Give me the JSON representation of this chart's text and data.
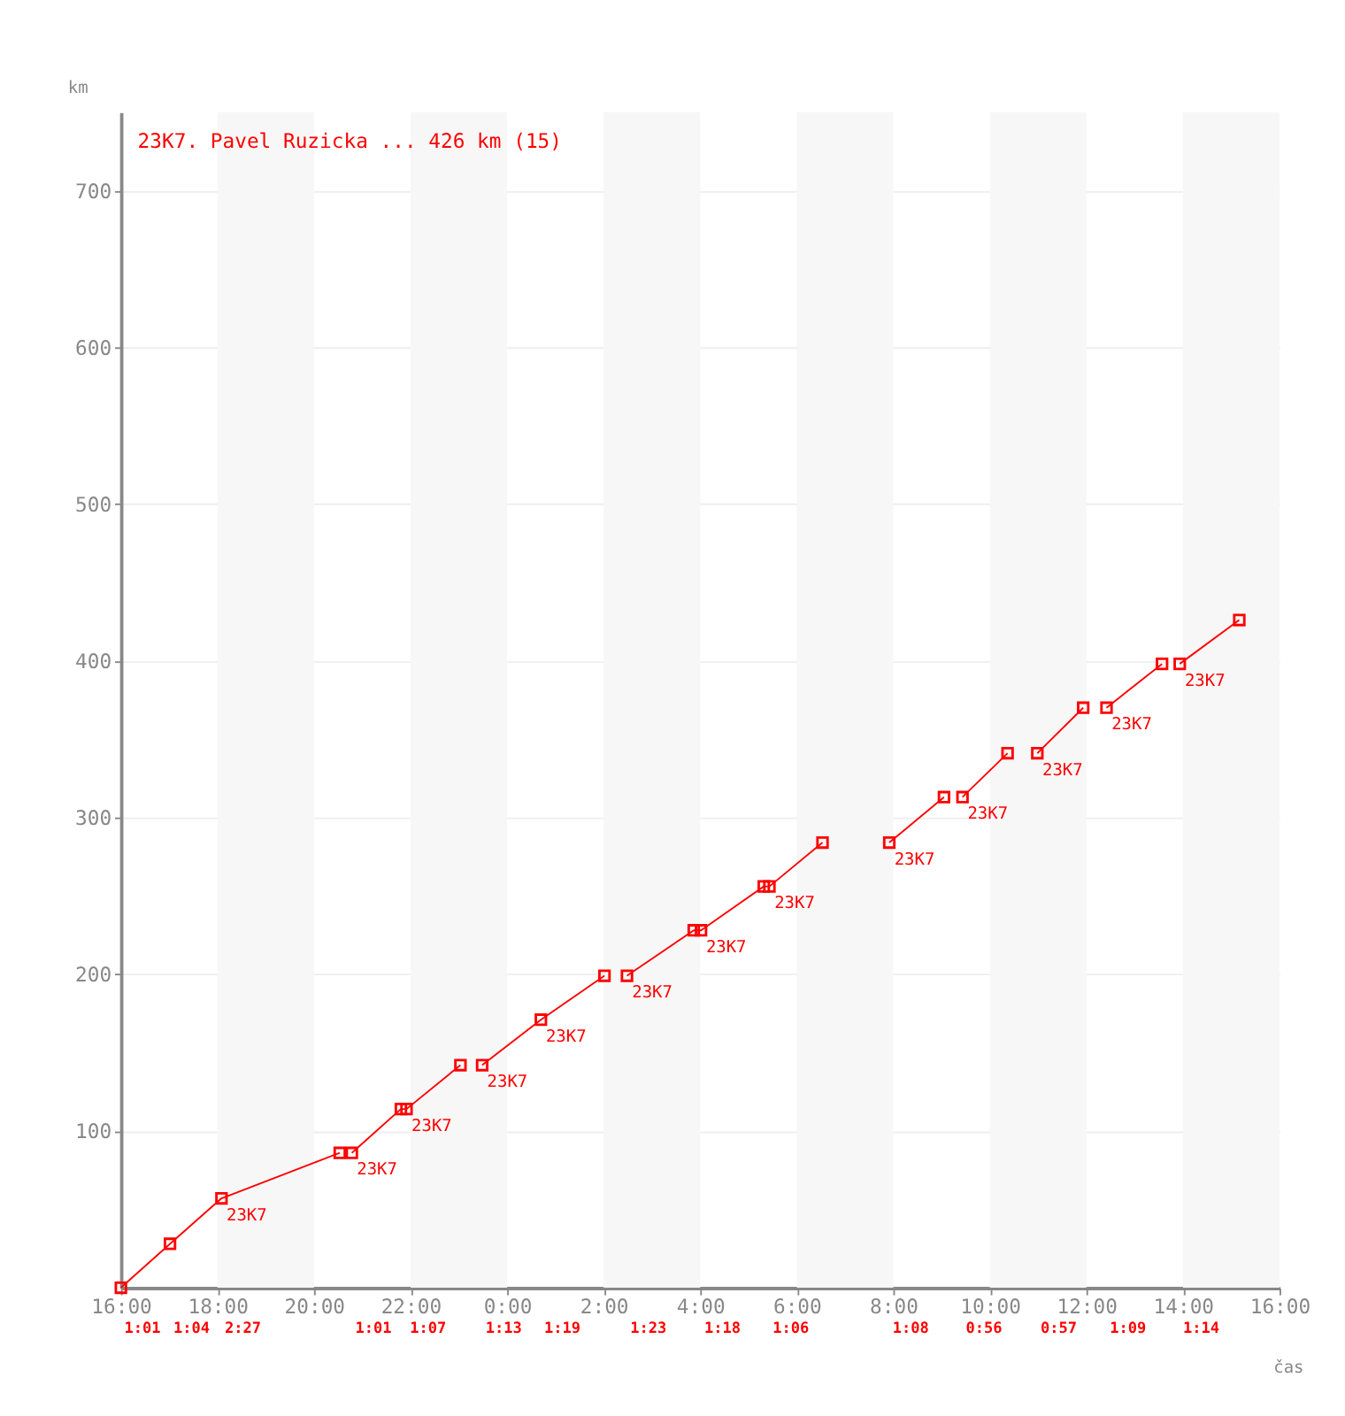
{
  "chart_data": {
    "type": "line",
    "title": "23K7. Pavel Ruzicka ... 426 km (15)",
    "xlabel": "čas",
    "ylabel": "km",
    "xlim": [
      "2000-01-01T16:00",
      "2000-01-02T16:00"
    ],
    "ylim": [
      0,
      750
    ],
    "xticks": [
      {
        "value": "2000-01-01T16:00",
        "label": "16:00"
      },
      {
        "value": "2000-01-01T18:00",
        "label": "18:00"
      },
      {
        "value": "2000-01-01T20:00",
        "label": "20:00"
      },
      {
        "value": "2000-01-01T22:00",
        "label": "22:00"
      },
      {
        "value": "2000-01-02T00:00",
        "label": "0:00"
      },
      {
        "value": "2000-01-02T02:00",
        "label": "2:00"
      },
      {
        "value": "2000-01-02T04:00",
        "label": "4:00"
      },
      {
        "value": "2000-01-02T06:00",
        "label": "6:00"
      },
      {
        "value": "2000-01-02T08:00",
        "label": "8:00"
      },
      {
        "value": "2000-01-02T10:00",
        "label": "10:00"
      },
      {
        "value": "2000-01-02T12:00",
        "label": "12:00"
      },
      {
        "value": "2000-01-02T14:00",
        "label": "14:00"
      },
      {
        "value": "2000-01-02T16:00",
        "label": "16:00"
      }
    ],
    "yticks": [
      100,
      200,
      300,
      400,
      500,
      600,
      700
    ],
    "grid": "y",
    "marker": "square",
    "line_style": "solid",
    "series": [
      {
        "color": "#ff0000",
        "x": [
          "2000-01-01T16:00",
          "2000-01-01T17:01",
          "2000-01-01T18:05",
          "2000-01-01T20:32"
        ],
        "values": [
          0,
          28,
          57,
          86
        ]
      },
      {
        "color": "#ff0000",
        "x": [
          "2000-01-01T20:47",
          "2000-01-01T21:48",
          "2000-01-01T21:55",
          "2000-01-01T23:02"
        ],
        "values": [
          86,
          114,
          114,
          142
        ]
      },
      {
        "color": "#ff0000",
        "x": [
          "2000-01-01T23:29",
          "2000-01-02T00:42",
          "2000-01-02T02:01"
        ],
        "values": [
          142,
          171,
          199
        ]
      },
      {
        "color": "#ff0000",
        "x": [
          "2000-01-02T02:29",
          "2000-01-02T03:52",
          "2000-01-02T04:01",
          "2000-01-02T05:19",
          "2000-01-02T05:26",
          "2000-01-02T06:32"
        ],
        "values": [
          199,
          228,
          228,
          256,
          256,
          284
        ]
      },
      {
        "color": "#ff0000",
        "x": [
          "2000-01-02T07:55",
          "2000-01-02T09:03"
        ],
        "values": [
          284,
          313
        ]
      },
      {
        "color": "#ff0000",
        "x": [
          "2000-01-02T09:26",
          "2000-01-02T10:22"
        ],
        "values": [
          313,
          341
        ]
      },
      {
        "color": "#ff0000",
        "x": [
          "2000-01-02T10:59",
          "2000-01-02T11:56"
        ],
        "values": [
          341,
          370
        ]
      },
      {
        "color": "#ff0000",
        "x": [
          "2000-01-02T12:25",
          "2000-01-02T13:34"
        ],
        "values": [
          370,
          398
        ]
      },
      {
        "color": "#ff0000",
        "x": [
          "2000-01-02T13:56",
          "2000-01-02T15:10"
        ],
        "values": [
          398,
          426
        ]
      }
    ],
    "bands": [
      {
        "axis": "x",
        "from": "2000-01-01T18:00",
        "to": "2000-01-01T20:00",
        "color": "#f7f7f7"
      },
      {
        "axis": "x",
        "from": "2000-01-01T22:00",
        "to": "2000-01-02T00:00",
        "color": "#f7f7f7"
      },
      {
        "axis": "x",
        "from": "2000-01-02T02:00",
        "to": "2000-01-02T04:00",
        "color": "#f7f7f7"
      },
      {
        "axis": "x",
        "from": "2000-01-02T06:00",
        "to": "2000-01-02T08:00",
        "color": "#f7f7f7"
      },
      {
        "axis": "x",
        "from": "2000-01-02T10:00",
        "to": "2000-01-02T12:00",
        "color": "#f7f7f7"
      },
      {
        "axis": "x",
        "from": "2000-01-02T14:00",
        "to": "2000-01-02T16:00",
        "color": "#f7f7f7"
      }
    ],
    "annotations": [
      {
        "text": "23K7",
        "x": "2000-01-01T18:05",
        "y": 57
      },
      {
        "text": "23K7",
        "x": "2000-01-01T20:47",
        "y": 86
      },
      {
        "text": "23K7",
        "x": "2000-01-01T21:55",
        "y": 114
      },
      {
        "text": "23K7",
        "x": "2000-01-01T23:29",
        "y": 142
      },
      {
        "text": "23K7",
        "x": "2000-01-02T00:42",
        "y": 171
      },
      {
        "text": "23K7",
        "x": "2000-01-02T02:29",
        "y": 199
      },
      {
        "text": "23K7",
        "x": "2000-01-02T04:01",
        "y": 228
      },
      {
        "text": "23K7",
        "x": "2000-01-02T05:26",
        "y": 256
      },
      {
        "text": "23K7",
        "x": "2000-01-02T07:55",
        "y": 284
      },
      {
        "text": "23K7",
        "x": "2000-01-02T09:26",
        "y": 313
      },
      {
        "text": "23K7",
        "x": "2000-01-02T10:59",
        "y": 341
      },
      {
        "text": "23K7",
        "x": "2000-01-02T12:25",
        "y": 370
      },
      {
        "text": "23K7",
        "x": "2000-01-02T13:56",
        "y": 398
      },
      "1:01",
      "1:04",
      "2:27",
      "1:01",
      "1:07",
      "1:13",
      "1:19",
      "1:23",
      "1:18",
      "1:06",
      "1:08",
      "0:56",
      "0:57",
      "1:09",
      "1:14"
    ]
  }
}
